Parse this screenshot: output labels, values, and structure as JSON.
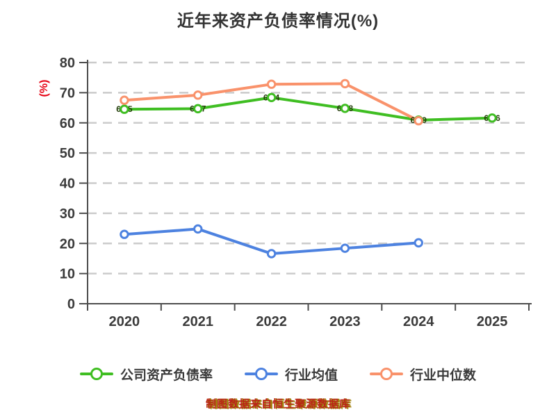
{
  "title": "近年来资产负债率情况(%)",
  "y_axis_label": "(%)",
  "caption": "制图数据来自恒生聚源数据库",
  "chart_data": {
    "type": "line",
    "title": "近年来资产负债率情况(%)",
    "ylabel": "(%)",
    "categories": [
      "2020",
      "2021",
      "2022",
      "2023",
      "2024",
      "2025"
    ],
    "y_ticks": [
      0,
      10,
      20,
      30,
      40,
      50,
      60,
      70,
      80
    ],
    "ylim": [
      0,
      80
    ],
    "grid": "horizontal-dashed",
    "grid_color": "#cbcbcb",
    "axis_color": "#4d4d4d",
    "tick_label_color": "#3b3b3b",
    "legend_position": "bottom",
    "series": [
      {
        "id": "company_ratio",
        "name": "公司资产负债率",
        "color": "#3fbe22",
        "values": [
          64.5,
          64.7,
          68.4,
          64.8,
          60.9,
          61.6
        ],
        "point_labels": [
          "64.5",
          "64.7",
          "68.4",
          "64.8",
          "60.9",
          "61.6"
        ]
      },
      {
        "id": "industry_mean",
        "name": "行业均值",
        "color": "#4d82e0",
        "values": [
          23.0,
          24.8,
          16.6,
          18.4,
          20.2,
          null
        ],
        "point_labels": []
      },
      {
        "id": "industry_median",
        "name": "行业中位数",
        "color": "#f9926b",
        "values": [
          67.5,
          69.2,
          72.8,
          73.0,
          60.7,
          null
        ],
        "point_labels": []
      }
    ]
  }
}
